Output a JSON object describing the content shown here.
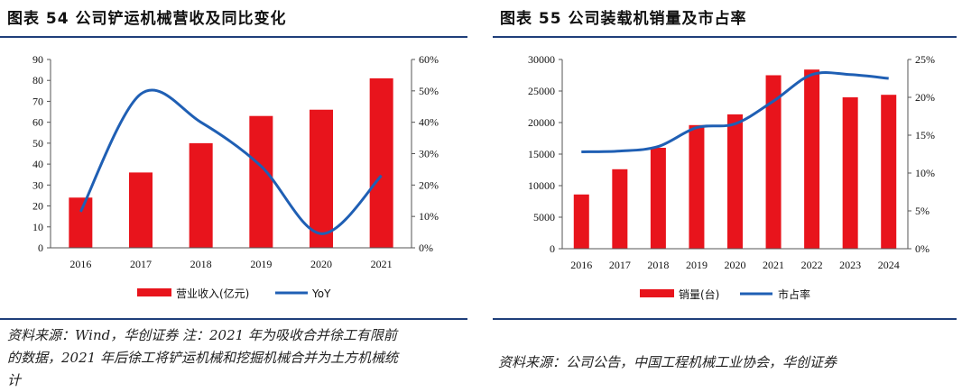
{
  "left": {
    "title": "图表 54   公司铲运机械营收及同比变化",
    "note_line1": "资料来源：Wind，华创证券  注：2021 年为吸收合并徐工有限前",
    "note_line2": "的数据，2021 年后徐工将铲运机械和挖掘机械合并为土方机械统",
    "note_line3": "计"
  },
  "right": {
    "title": "图表 55   公司装载机销量及市占率",
    "note_line1": "资料来源：公司公告，中国工程机械工业协会，华创证券"
  },
  "colors": {
    "bar": "#e8141c",
    "line": "#1f5fb4",
    "rule": "#1f3f7a"
  },
  "chart_data": [
    {
      "type": "bar",
      "categories": [
        "2016",
        "2017",
        "2018",
        "2019",
        "2020",
        "2021"
      ],
      "series": [
        {
          "name": "营业收入(亿元)",
          "type": "bar",
          "axis": "left",
          "values": [
            24,
            36,
            50,
            63,
            66,
            81
          ]
        },
        {
          "name": "YoY",
          "type": "line",
          "axis": "right",
          "values": [
            0.115,
            0.49,
            0.4,
            0.26,
            0.045,
            0.23
          ]
        }
      ],
      "ylim_left": [
        0,
        90
      ],
      "yticks_left": [
        "0",
        "10",
        "20",
        "30",
        "40",
        "50",
        "60",
        "70",
        "80",
        "90"
      ],
      "ylim_right": [
        0,
        0.6
      ],
      "yticks_right": [
        "0%",
        "10%",
        "20%",
        "30%",
        "40%",
        "50%",
        "60%"
      ],
      "legend_position": "bottom",
      "grid": false
    },
    {
      "type": "bar",
      "categories": [
        "2016",
        "2017",
        "2018",
        "2019",
        "2020",
        "2021",
        "2022",
        "2023",
        "2024"
      ],
      "series": [
        {
          "name": "销量(台)",
          "type": "bar",
          "axis": "left",
          "values": [
            8600,
            12600,
            16000,
            19600,
            21300,
            27500,
            28400,
            24000,
            24400
          ]
        },
        {
          "name": "市占率",
          "type": "line",
          "axis": "right",
          "values": [
            0.128,
            0.129,
            0.135,
            0.16,
            0.165,
            0.195,
            0.23,
            0.23,
            0.225
          ]
        }
      ],
      "ylim_left": [
        0,
        30000
      ],
      "yticks_left": [
        "0",
        "5000",
        "10000",
        "15000",
        "20000",
        "25000",
        "30000"
      ],
      "ylim_right": [
        0,
        0.25
      ],
      "yticks_right": [
        "0%",
        "5%",
        "10%",
        "15%",
        "20%",
        "25%"
      ],
      "legend_position": "bottom",
      "grid": false
    }
  ]
}
